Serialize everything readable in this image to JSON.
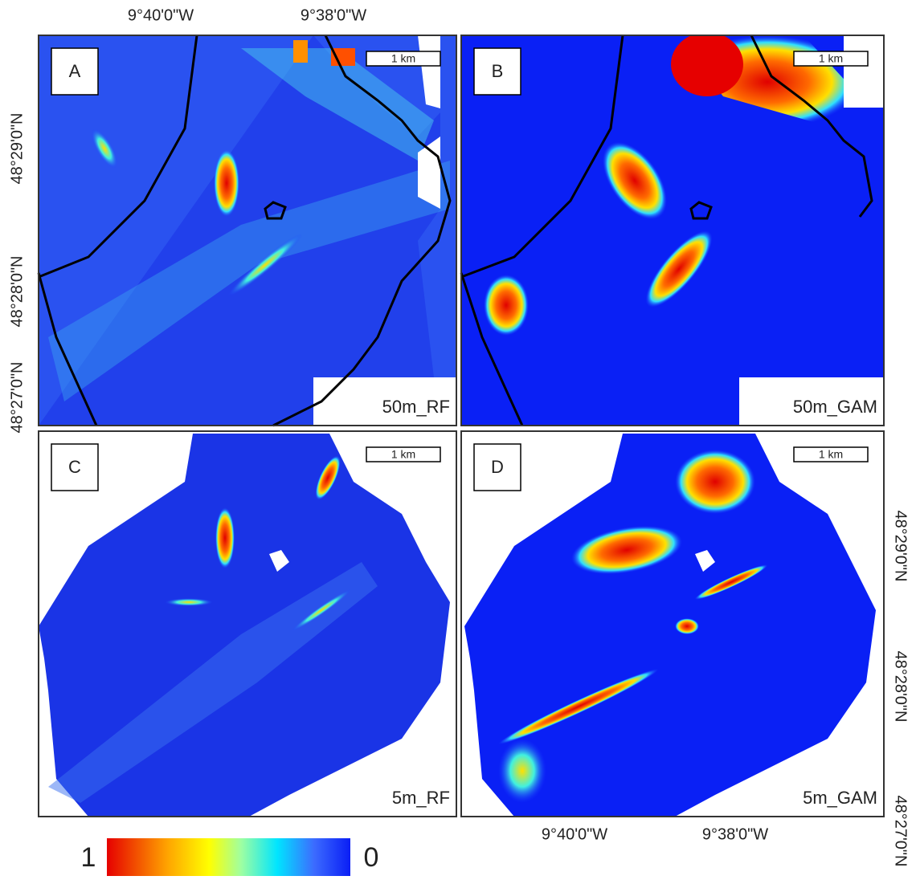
{
  "axes": {
    "top_x_labels": [
      "9°40'0\"W",
      "9°38'0\"W"
    ],
    "left_y_labels": [
      "48°29'0\"N",
      "48°28'0\"N",
      "48°27'0\"N"
    ],
    "right_y_labels": [
      "48°29'0\"N",
      "48°28'0\"N",
      "48°27'0\"N"
    ],
    "bottom_x_labels": [
      "9°40'0\"W",
      "9°38'0\"W"
    ]
  },
  "panels": [
    {
      "letter": "A",
      "scale": "1 km",
      "model": "50m_RF"
    },
    {
      "letter": "B",
      "scale": "1 km",
      "model": "50m_GAM"
    },
    {
      "letter": "C",
      "scale": "1 km",
      "model": "5m_RF"
    },
    {
      "letter": "D",
      "scale": "1 km",
      "model": "5m_GAM"
    }
  ],
  "colorbar": {
    "max_label": "1",
    "min_label": "0"
  }
}
